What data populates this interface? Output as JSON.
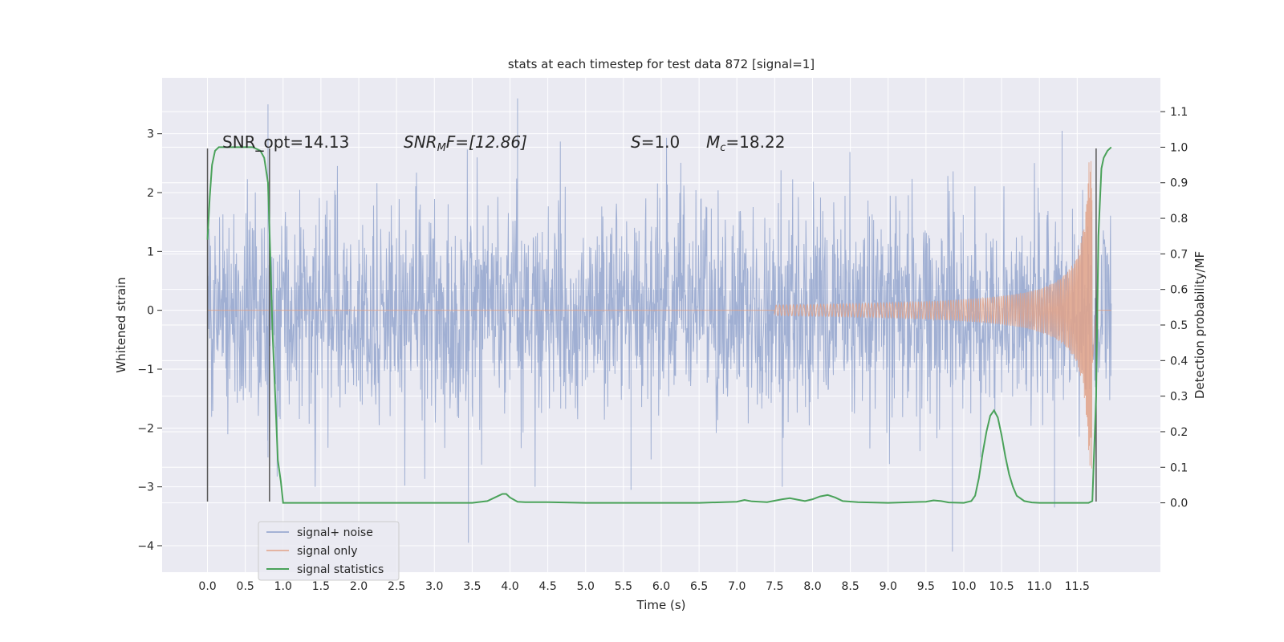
{
  "chart_data": {
    "type": "line",
    "title": "stats at each timestep for test data 872 [signal=1]",
    "xlabel": "Time (s)",
    "ylabel": "Whitened strain",
    "y2label": "Detection probability/MF",
    "xlim": [
      -0.6,
      12.6
    ],
    "ylim": [
      -4.45,
      3.95
    ],
    "y2lim": [
      -0.195,
      1.195
    ],
    "xticks": [
      0.0,
      0.5,
      1.0,
      1.5,
      2.0,
      2.5,
      3.0,
      3.5,
      4.0,
      4.5,
      5.0,
      5.5,
      6.0,
      6.5,
      7.0,
      7.5,
      8.0,
      8.5,
      9.0,
      9.5,
      10.0,
      10.5,
      11.0,
      11.5
    ],
    "xtick_labels": [
      "0.0",
      "0.5",
      "1.0",
      "1.5",
      "2.0",
      "2.5",
      "3.0",
      "3.5",
      "4.0",
      "4.5",
      "5.0",
      "5.5",
      "6.0",
      "6.5",
      "7.0",
      "7.5",
      "8.0",
      "8.5",
      "9.0",
      "9.5",
      "10.0",
      "10.5",
      "11.0",
      "11.5"
    ],
    "yticks": [
      -4,
      -3,
      -2,
      -1,
      0,
      1,
      2,
      3
    ],
    "ytick_labels": [
      "−4",
      "−3",
      "−2",
      "−1",
      "0",
      "1",
      "2",
      "3"
    ],
    "y2ticks": [
      0.0,
      0.1,
      0.2,
      0.3,
      0.4,
      0.5,
      0.6,
      0.7,
      0.8,
      0.9,
      1.0,
      1.1
    ],
    "y2tick_labels": [
      "0.0",
      "0.1",
      "0.2",
      "0.3",
      "0.4",
      "0.5",
      "0.6",
      "0.7",
      "0.8",
      "0.9",
      "1.0",
      "1.1"
    ],
    "grid": true,
    "legend_position": "lower-left",
    "annotations": {
      "snr_opt": "SNR_opt=14.13",
      "snr_mf_main": "SNR",
      "snr_mf_sub": "M",
      "snr_mf_rest": "F=[12.86]",
      "s_main": "S",
      "s_rest": "=1.0",
      "mc_main": "M",
      "mc_sub": "c",
      "mc_rest": "=18.22"
    },
    "noise": {
      "t_start": 0.0,
      "t_end": 11.95,
      "typical_min": -1.9,
      "typical_max": 1.9,
      "spikes": [
        [
          0.8,
          3.5
        ],
        [
          0.8,
          -2.5
        ],
        [
          3.45,
          -3.95
        ],
        [
          4.1,
          3.6
        ],
        [
          5.6,
          -3.05
        ],
        [
          7.6,
          -3.0
        ],
        [
          9.85,
          -4.1
        ],
        [
          11.3,
          3.05
        ],
        [
          11.2,
          -3.35
        ]
      ]
    },
    "chirp": {
      "t_start": 7.5,
      "t_merger": 11.7,
      "peak_amplitude": 2.7
    },
    "detector_markers": {
      "t": [
        0.0,
        0.82,
        11.75
      ],
      "y_low": -3.25,
      "y_high": 2.75
    },
    "series": [
      {
        "name": "signal+ noise",
        "color": "#8da0cb"
      },
      {
        "name": "signal only",
        "color": "#e1a288"
      },
      {
        "name": "signal statistics",
        "color": "#4aa25a",
        "axis": "right",
        "x": [
          0.0,
          0.03,
          0.06,
          0.1,
          0.15,
          0.2,
          0.3,
          0.4,
          0.5,
          0.6,
          0.7,
          0.75,
          0.8,
          0.83,
          0.86,
          0.9,
          0.93,
          0.97,
          1.0,
          1.05,
          1.2,
          1.5,
          2.0,
          2.5,
          3.0,
          3.5,
          3.7,
          3.8,
          3.9,
          3.95,
          4.0,
          4.1,
          4.2,
          4.5,
          5.0,
          5.5,
          6.0,
          6.5,
          7.0,
          7.1,
          7.2,
          7.4,
          7.6,
          7.7,
          7.8,
          7.9,
          8.0,
          8.1,
          8.2,
          8.3,
          8.4,
          8.6,
          9.0,
          9.5,
          9.6,
          9.7,
          9.8,
          10.0,
          10.1,
          10.15,
          10.2,
          10.25,
          10.3,
          10.35,
          10.4,
          10.45,
          10.5,
          10.55,
          10.6,
          10.65,
          10.7,
          10.8,
          10.9,
          11.0,
          11.3,
          11.5,
          11.6,
          11.65,
          11.7,
          11.75,
          11.78,
          11.82,
          11.85,
          11.9,
          11.95
        ],
        "y": [
          0.74,
          0.86,
          0.95,
          0.99,
          1.0,
          1.0,
          1.0,
          1.0,
          1.0,
          1.0,
          0.99,
          0.97,
          0.9,
          0.7,
          0.48,
          0.28,
          0.12,
          0.06,
          0.0,
          0.0,
          0.0,
          0.0,
          0.0,
          0.0,
          0.0,
          0.0,
          0.005,
          0.015,
          0.025,
          0.025,
          0.015,
          0.003,
          0.002,
          0.002,
          0.0,
          0.0,
          0.0,
          0.0,
          0.003,
          0.008,
          0.004,
          0.002,
          0.01,
          0.013,
          0.009,
          0.005,
          0.01,
          0.018,
          0.022,
          0.015,
          0.005,
          0.002,
          0.0,
          0.003,
          0.007,
          0.005,
          0.001,
          0.0,
          0.005,
          0.02,
          0.07,
          0.14,
          0.2,
          0.245,
          0.26,
          0.24,
          0.19,
          0.13,
          0.08,
          0.045,
          0.02,
          0.005,
          0.001,
          0.0,
          0.0,
          0.0,
          0.0,
          0.0,
          0.005,
          0.3,
          0.75,
          0.94,
          0.97,
          0.99,
          1.0
        ]
      }
    ]
  }
}
